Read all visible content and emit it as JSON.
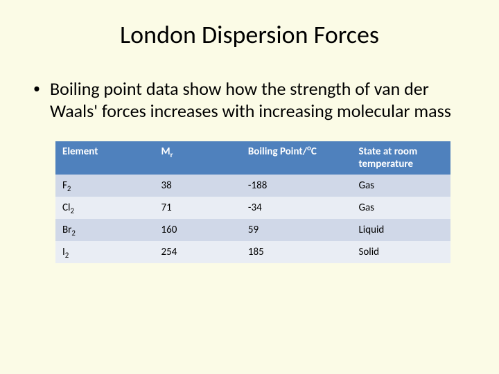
{
  "title": {
    "text": "London Dispersion Forces",
    "fontsize": 36,
    "color": "#000000"
  },
  "bullet": {
    "marker": "•",
    "text": "Boiling  point data show how the strength of van der Waals' forces increases with increasing molecular mass",
    "fontsize": 26,
    "color": "#000000"
  },
  "table": {
    "type": "table",
    "header_bg": "#4f81bd",
    "header_color": "#ffffff",
    "row_odd_bg": "#d0d8e8",
    "row_even_bg": "#e9edf4",
    "fontsize_header": 15,
    "fontsize_cell": 15,
    "col_widths": [
      "25%",
      "22%",
      "28%",
      "25%"
    ],
    "columns": [
      {
        "label": "Element"
      },
      {
        "label_main": "M",
        "label_sub": "r"
      },
      {
        "label_pre": "Boiling Point/",
        "label_sup": "o",
        "label_post": "C"
      },
      {
        "label": "State at room temperature"
      }
    ],
    "rows": [
      {
        "elem_main": "F",
        "elem_sub": "2",
        "mr": "38",
        "bp": "-188",
        "state": "Gas"
      },
      {
        "elem_main": "Cl",
        "elem_sub": "2",
        "mr": "71",
        "bp": "-34",
        "state": "Gas"
      },
      {
        "elem_main": "Br",
        "elem_sub": "2",
        "mr": "160",
        "bp": "59",
        "state": "Liquid"
      },
      {
        "elem_main": "I",
        "elem_sub": "2",
        "mr": "254",
        "bp": "185",
        "state": "Solid"
      }
    ]
  },
  "background_color": "#fbfbe6"
}
